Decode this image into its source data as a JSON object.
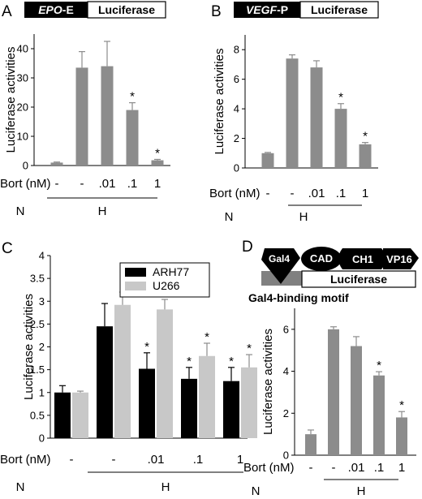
{
  "colors": {
    "bar_gray": "#8c8c8c",
    "series_black": "#000000",
    "series_light": "#c8c8c8"
  },
  "chart_data": [
    {
      "panel": "A",
      "type": "bar",
      "construct": {
        "filled_label": "EPO",
        "filled_suffix": "-E",
        "open_label": "Luciferase"
      },
      "ylabel": "Luciferase activities",
      "ylim": [
        0,
        45
      ],
      "yticks": [
        "0",
        "10",
        "20",
        "30",
        "40"
      ],
      "row_label": "Bort (nM)",
      "categories": [
        "-",
        "-",
        ".01",
        ".1",
        "1"
      ],
      "group_labels": [
        "N",
        "H"
      ],
      "values": [
        1.0,
        33.5,
        34.0,
        19.0,
        1.8
      ],
      "errors": [
        0.2,
        5.5,
        8.5,
        2.5,
        0.3
      ],
      "significance": [
        "",
        "",
        "",
        "*",
        "*"
      ]
    },
    {
      "panel": "B",
      "type": "bar",
      "construct": {
        "filled_label": "VEGF",
        "filled_suffix": "-P",
        "open_label": "Luciferase"
      },
      "ylabel": "Luciferase activities",
      "ylim": [
        0,
        9
      ],
      "yticks": [
        "0",
        "2",
        "4",
        "6",
        "8"
      ],
      "row_label": "Bort (nM)",
      "categories": [
        "-",
        "-",
        ".01",
        ".1",
        "1"
      ],
      "group_labels": [
        "N",
        "H"
      ],
      "values": [
        1.0,
        7.4,
        6.8,
        4.0,
        1.6
      ],
      "errors": [
        0.05,
        0.25,
        0.45,
        0.35,
        0.12
      ],
      "significance": [
        "",
        "",
        "",
        "*",
        "*"
      ]
    },
    {
      "panel": "C",
      "type": "bar",
      "ylabel": "Luciferase activities",
      "ylim": [
        0,
        4
      ],
      "yticks": [
        "0",
        "0.5",
        "1",
        "1.5",
        "2",
        "2.5",
        "3",
        "3.5",
        "4"
      ],
      "row_label": "Bort (nM)",
      "categories": [
        "-",
        "-",
        ".01",
        ".1",
        "1"
      ],
      "group_labels": [
        "N",
        "H"
      ],
      "legend": "top-left",
      "series": [
        {
          "name": "ARH77",
          "values": [
            1.0,
            2.45,
            1.52,
            1.3,
            1.25
          ],
          "errors": [
            0.15,
            0.5,
            0.35,
            0.25,
            0.3
          ],
          "significance": [
            "",
            "",
            "*",
            "*",
            "*"
          ]
        },
        {
          "name": "U266",
          "values": [
            1.0,
            2.92,
            2.82,
            1.8,
            1.55
          ],
          "errors": [
            0.03,
            0.28,
            0.22,
            0.28,
            0.28
          ],
          "significance": [
            "",
            "",
            "",
            "*",
            "*"
          ]
        }
      ]
    },
    {
      "panel": "D",
      "type": "bar",
      "construct": {
        "domains": [
          "Gal4",
          "CAD",
          "CH1",
          "VP16"
        ],
        "open_label": "Luciferase",
        "caption": "Gal4-binding motif"
      },
      "ylabel": "Luciferase activities",
      "ylim": [
        0,
        7
      ],
      "yticks": [
        "0",
        "2",
        "4",
        "6"
      ],
      "row_label": "Bort (nM)",
      "categories": [
        "-",
        "-",
        ".01",
        ".1",
        "1"
      ],
      "group_labels": [
        "N",
        "H"
      ],
      "values": [
        1.0,
        6.0,
        5.2,
        3.8,
        1.8
      ],
      "errors": [
        0.2,
        0.12,
        0.45,
        0.18,
        0.28
      ],
      "significance": [
        "",
        "",
        "",
        "*",
        "*"
      ]
    }
  ]
}
